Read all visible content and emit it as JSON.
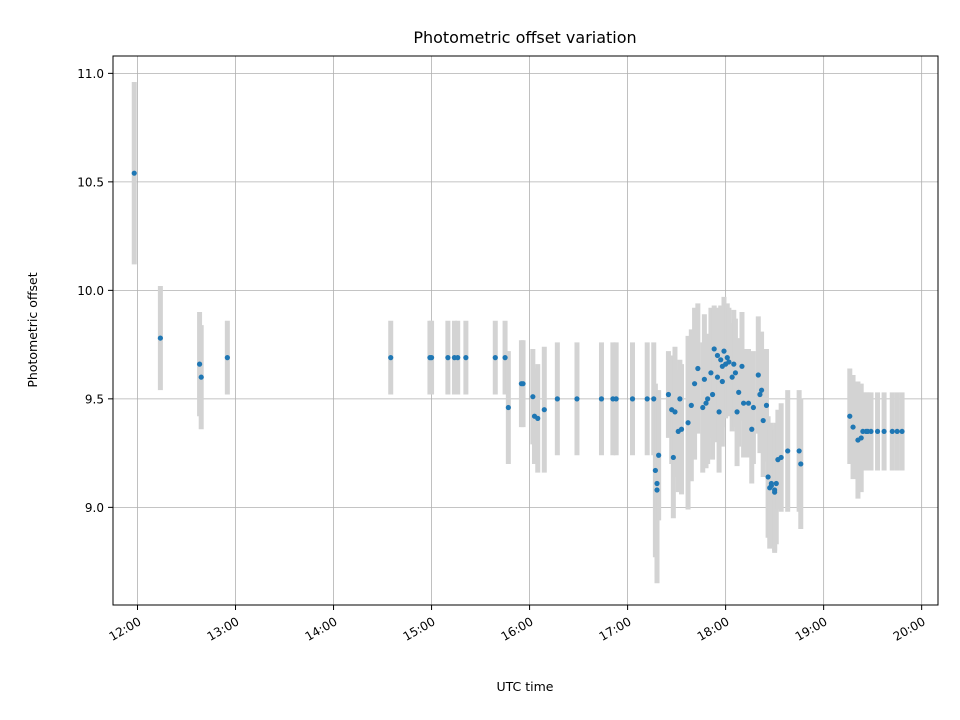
{
  "chart_data": {
    "type": "scatter",
    "title": "Photometric offset variation",
    "xlabel": "UTC time",
    "ylabel": "Photometric offset",
    "x_ticks": [
      "12:00",
      "13:00",
      "14:00",
      "15:00",
      "16:00",
      "17:00",
      "18:00",
      "19:00",
      "20:00"
    ],
    "y_ticks": [
      "9.0",
      "9.5",
      "10.0",
      "10.5",
      "11.0"
    ],
    "x_range": [
      "11:45",
      "20:10"
    ],
    "ylim": [
      8.55,
      11.08
    ],
    "grid": true,
    "colors": {
      "point": "#1f77b4",
      "errorbar": "#d3d3d3",
      "grid": "#b0b0b0"
    },
    "series": [
      {
        "x": [
          "11:58",
          "12:14",
          "12:38",
          "12:39",
          "12:55",
          "14:35",
          "14:59",
          "15:00",
          "15:10",
          "15:14",
          "15:16",
          "15:21",
          "15:39",
          "15:45",
          "15:47",
          "15:55",
          "15:56",
          "16:02",
          "16:03",
          "16:05",
          "16:09",
          "16:17",
          "16:29",
          "16:44",
          "16:51",
          "16:53",
          "17:03",
          "17:12",
          "17:16",
          "17:17",
          "17:18",
          "17:18",
          "17:19",
          "17:25",
          "17:27",
          "17:28",
          "17:29",
          "17:31",
          "17:32",
          "17:33",
          "17:37",
          "17:39",
          "17:41",
          "17:43",
          "17:46",
          "17:47",
          "17:48",
          "17:49",
          "17:51",
          "17:52",
          "17:53",
          "17:55",
          "17:55",
          "17:56",
          "17:57",
          "17:58",
          "17:58",
          "17:59",
          "18:00",
          "18:01",
          "18:02",
          "18:04",
          "18:05",
          "18:06",
          "18:07",
          "18:08",
          "18:10",
          "18:11",
          "18:14",
          "18:16",
          "18:17",
          "18:20",
          "18:21",
          "18:22",
          "18:23",
          "18:25",
          "18:26",
          "18:27",
          "18:28",
          "18:28",
          "18:30",
          "18:30",
          "18:31",
          "18:32",
          "18:34",
          "18:38",
          "18:45",
          "18:46",
          "19:16",
          "19:18",
          "19:21",
          "19:23",
          "19:24",
          "19:26",
          "19:27",
          "19:29",
          "19:33",
          "19:37",
          "19:42",
          "19:45",
          "19:48"
        ],
        "y": [
          10.54,
          9.78,
          9.66,
          9.6,
          9.69,
          9.69,
          9.69,
          9.69,
          9.69,
          9.69,
          9.69,
          9.69,
          9.69,
          9.69,
          9.46,
          9.57,
          9.57,
          9.51,
          9.42,
          9.41,
          9.45,
          9.5,
          9.5,
          9.5,
          9.5,
          9.5,
          9.5,
          9.5,
          9.5,
          9.17,
          9.08,
          9.11,
          9.24,
          9.52,
          9.45,
          9.23,
          9.44,
          9.35,
          9.5,
          9.36,
          9.39,
          9.47,
          9.57,
          9.64,
          9.46,
          9.59,
          9.48,
          9.5,
          9.62,
          9.52,
          9.73,
          9.7,
          9.6,
          9.44,
          9.68,
          9.65,
          9.58,
          9.72,
          9.66,
          9.69,
          9.67,
          9.6,
          9.66,
          9.62,
          9.44,
          9.53,
          9.65,
          9.48,
          9.48,
          9.36,
          9.46,
          9.61,
          9.52,
          9.54,
          9.4,
          9.47,
          9.14,
          9.09,
          9.1,
          9.11,
          9.08,
          9.07,
          9.11,
          9.22,
          9.23,
          9.26,
          9.26,
          9.2,
          9.42,
          9.37,
          9.31,
          9.32,
          9.35,
          9.35,
          9.35,
          9.35,
          9.35,
          9.35,
          9.35,
          9.35,
          9.35
        ],
        "err": [
          0.42,
          0.24,
          0.24,
          0.24,
          0.17,
          0.17,
          0.17,
          0.17,
          0.17,
          0.17,
          0.17,
          0.17,
          0.17,
          0.17,
          0.26,
          0.2,
          0.2,
          0.22,
          0.22,
          0.25,
          0.29,
          0.26,
          0.26,
          0.26,
          0.26,
          0.26,
          0.26,
          0.26,
          0.26,
          0.4,
          0.43,
          0.43,
          0.3,
          0.2,
          0.25,
          0.28,
          0.3,
          0.28,
          0.18,
          0.3,
          0.4,
          0.35,
          0.35,
          0.3,
          0.3,
          0.3,
          0.3,
          0.3,
          0.3,
          0.3,
          0.2,
          0.22,
          0.3,
          0.28,
          0.25,
          0.28,
          0.3,
          0.25,
          0.25,
          0.25,
          0.25,
          0.25,
          0.25,
          0.25,
          0.25,
          0.25,
          0.25,
          0.25,
          0.25,
          0.25,
          0.26,
          0.27,
          0.27,
          0.27,
          0.26,
          0.26,
          0.28,
          0.28,
          0.28,
          0.28,
          0.28,
          0.28,
          0.28,
          0.23,
          0.25,
          0.28,
          0.28,
          0.3,
          0.22,
          0.24,
          0.27,
          0.25,
          0.18,
          0.18,
          0.18,
          0.18,
          0.18,
          0.18,
          0.18,
          0.18,
          0.18
        ]
      }
    ]
  }
}
